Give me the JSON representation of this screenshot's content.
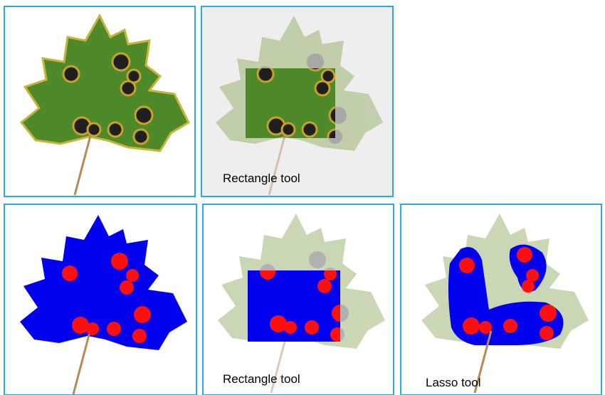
{
  "labels": [
    "Rectangle tool",
    "Rectangle tool",
    "Lasso tool"
  ]
}
